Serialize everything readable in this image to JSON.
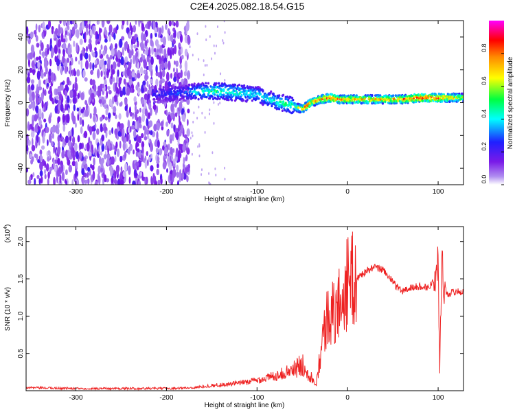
{
  "title": "C2E4.2025.082.18.54.G15",
  "colors": {
    "snr_line": "#ee2222",
    "colormap": [
      "#ffffff",
      "#b08ef0",
      "#7a1ae8",
      "#1f20ff",
      "#00ffff",
      "#00ff40",
      "#ffff00",
      "#ff0000",
      "#ff00ff"
    ]
  },
  "chart_data": [
    {
      "type": "heatmap",
      "xlabel": "Height of straight line (km)",
      "ylabel": "Frequency (Hz)",
      "xlim": [
        -355,
        128
      ],
      "ylim": [
        -50,
        50
      ],
      "xticks": [
        -300,
        -200,
        -100,
        0,
        100
      ],
      "yticks": [
        -40,
        -20,
        0,
        20,
        40
      ],
      "grid": false,
      "colorbar": {
        "label": "Normalized spectral amplitude",
        "range": [
          0,
          1
        ],
        "ticks": [
          "0.0",
          "0.2",
          "0.4",
          "0.6",
          "0.8"
        ],
        "tick_values": [
          0.0,
          0.2,
          0.4,
          0.6,
          0.8
        ]
      },
      "ridge": {
        "x": [
          -215,
          -180,
          -160,
          -140,
          -120,
          -100,
          -80,
          -60,
          -50,
          -45,
          -40,
          -30,
          -20,
          -10,
          0,
          20,
          40,
          60,
          80,
          100,
          128
        ],
        "frequency": [
          5,
          6,
          7,
          7,
          6,
          5,
          1,
          -2,
          -4,
          -2,
          0,
          2,
          3,
          2,
          2,
          2,
          2,
          2,
          3,
          3,
          3
        ],
        "amplitude": [
          0.25,
          0.3,
          0.45,
          0.5,
          0.45,
          0.4,
          0.45,
          0.55,
          0.7,
          0.85,
          0.75,
          0.8,
          0.85,
          0.8,
          0.75,
          0.75,
          0.75,
          0.8,
          0.9,
          0.85,
          0.6
        ]
      },
      "noise_region_x": [
        -355,
        -175
      ]
    },
    {
      "type": "line",
      "xlabel": "Height of straight line (km)",
      "ylabel": "SNR (10 * v/v)",
      "y_multiplier": "(x10^4)",
      "y_multiplier_base": "(x10",
      "y_multiplier_exp": "4",
      "y_multiplier_close": ")",
      "xlim": [
        -355,
        128
      ],
      "ylim": [
        0,
        2.2
      ],
      "xticks": [
        -300,
        -200,
        -100,
        0,
        100
      ],
      "yticks": [
        0.5,
        1.0,
        1.5,
        2.0
      ],
      "ytick_labels": [
        "0.5",
        "1.0",
        "1.5",
        "2.0"
      ],
      "grid": false,
      "series": [
        {
          "x": [
            -355,
            -300,
            -250,
            -200,
            -170,
            -150,
            -120,
            -100,
            -80,
            -60,
            -50,
            -40,
            -35,
            -30,
            -25,
            -20,
            -15,
            -10,
            -5,
            0,
            10,
            20,
            30,
            40,
            50,
            60,
            70,
            80,
            90,
            95,
            100,
            102,
            104,
            106,
            110,
            120,
            128
          ],
          "values": [
            0.04,
            0.03,
            0.03,
            0.03,
            0.04,
            0.07,
            0.1,
            0.14,
            0.2,
            0.28,
            0.35,
            0.18,
            0.08,
            0.5,
            0.85,
            1.1,
            1.0,
            1.15,
            1.3,
            1.45,
            1.5,
            1.6,
            1.65,
            1.62,
            1.45,
            1.33,
            1.38,
            1.4,
            1.38,
            1.5,
            1.7,
            0.3,
            1.9,
            1.4,
            1.3,
            1.33,
            1.32
          ]
        }
      ]
    }
  ]
}
